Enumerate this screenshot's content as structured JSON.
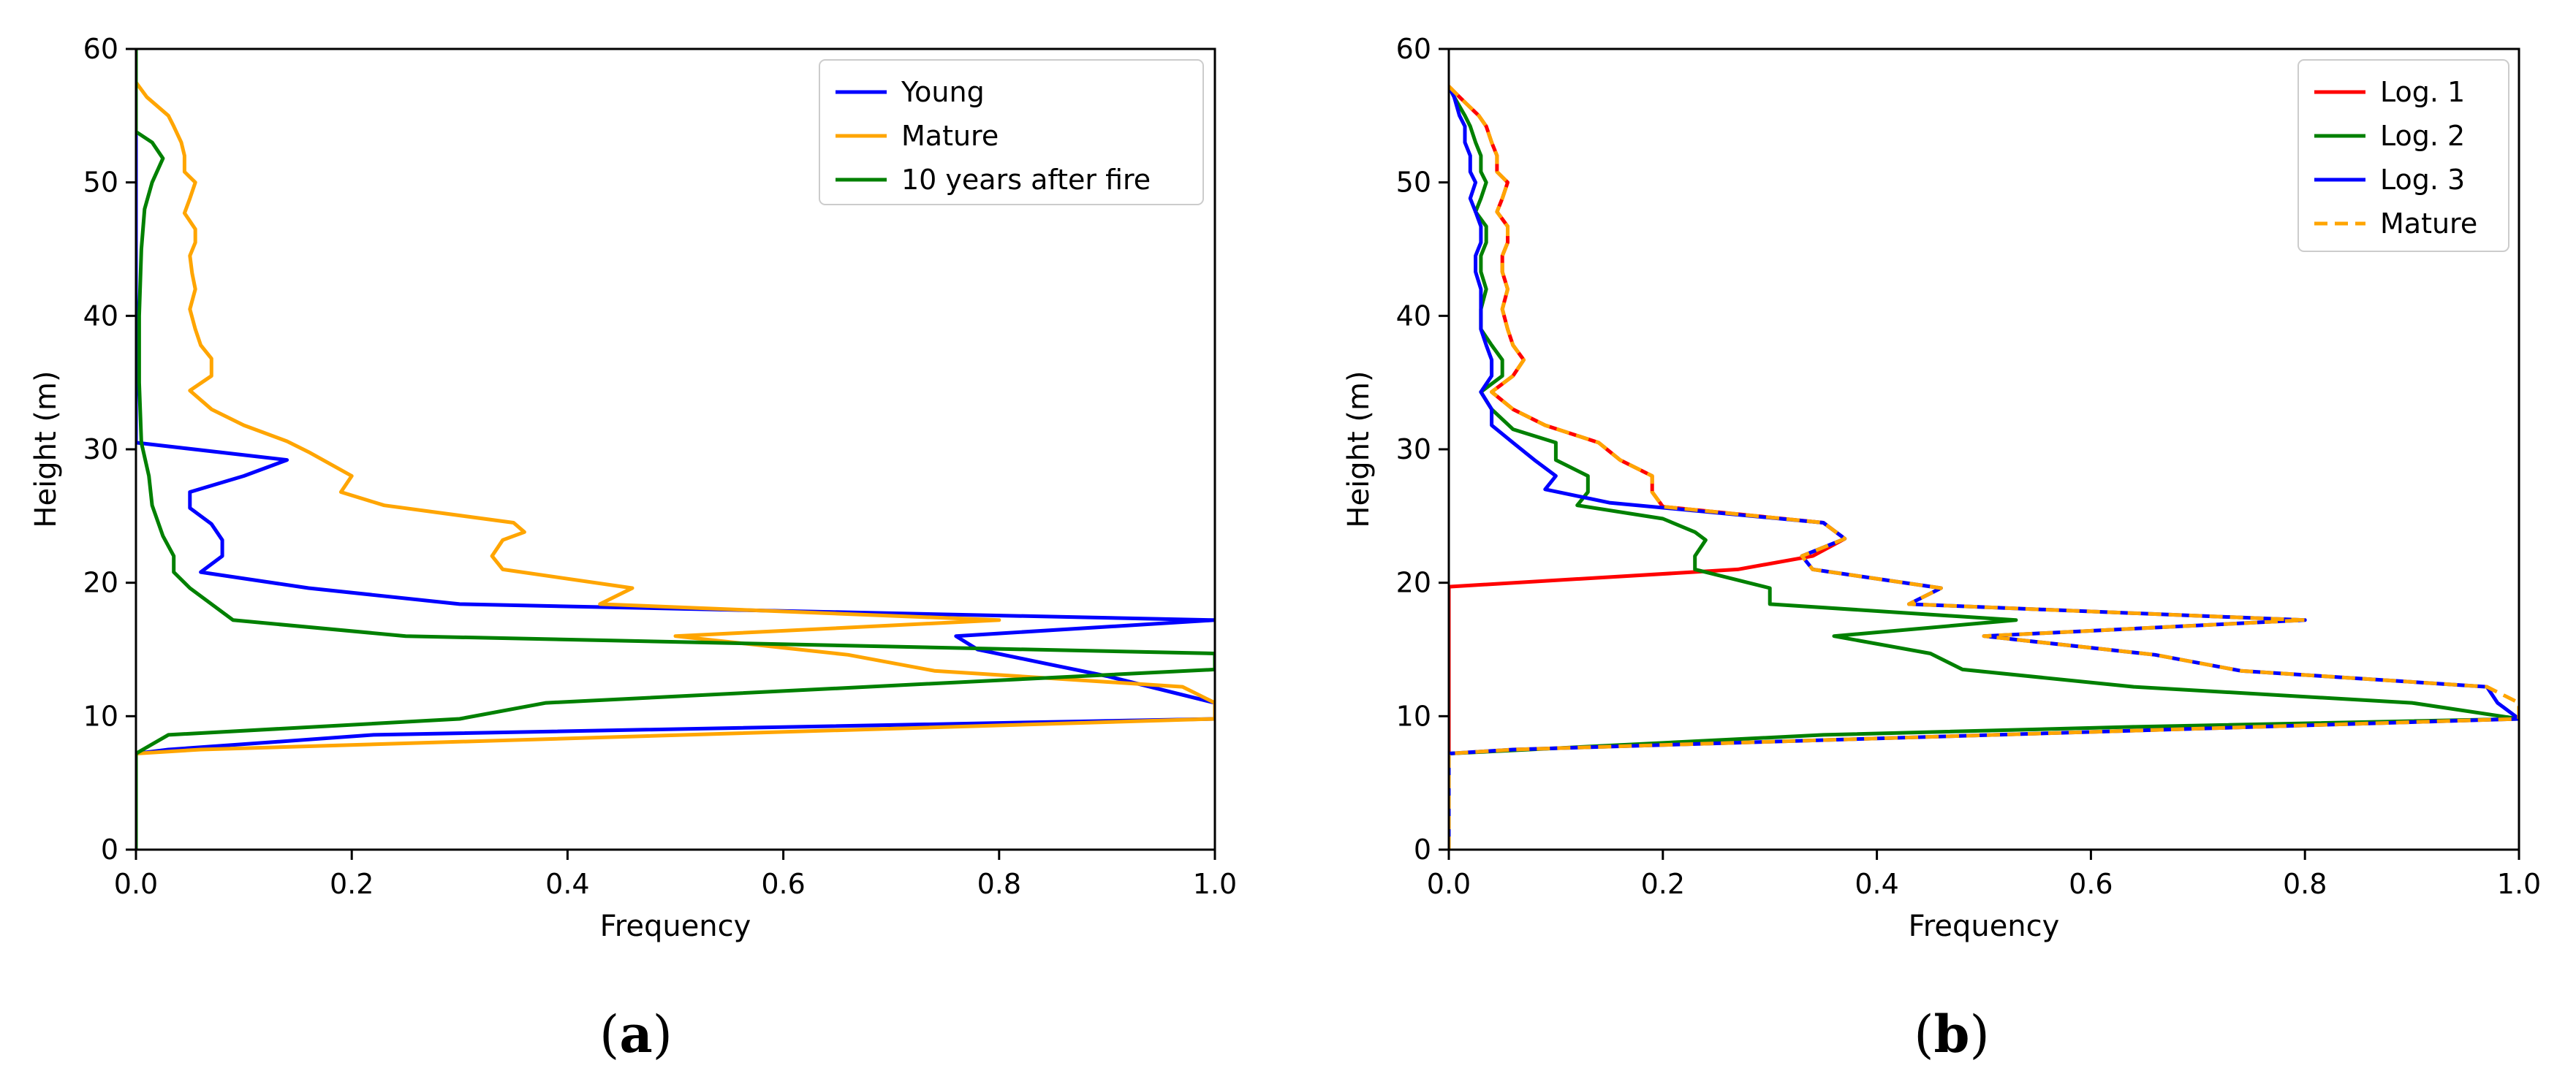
{
  "chart_data": [
    {
      "type": "line",
      "panel": "a",
      "panel_label_parts": [
        "(",
        "a",
        ")"
      ],
      "xlabel": "Frequency",
      "ylabel": "Height (m)",
      "xlim": [
        0,
        1
      ],
      "ylim": [
        0,
        60
      ],
      "xticks": [
        "0.0",
        "0.2",
        "0.4",
        "0.6",
        "0.8",
        "1.0"
      ],
      "yticks": [
        "0",
        "10",
        "20",
        "30",
        "40",
        "50",
        "60"
      ],
      "legend_location": "upper right",
      "series": [
        {
          "name": "Young",
          "color": "#0000ff",
          "style": "solid",
          "points": [
            [
              0,
              0
            ],
            [
              0,
              7.2
            ],
            [
              0.03,
              7.5
            ],
            [
              0.22,
              8.6
            ],
            [
              1.0,
              9.8
            ],
            [
              1.0,
              11
            ],
            [
              0.9,
              13
            ],
            [
              0.84,
              14
            ],
            [
              0.78,
              15
            ],
            [
              0.76,
              16
            ],
            [
              1.0,
              17.2
            ],
            [
              0.3,
              18.4
            ],
            [
              0.16,
              19.6
            ],
            [
              0.06,
              20.8
            ],
            [
              0.08,
              22
            ],
            [
              0.08,
              23.2
            ],
            [
              0.07,
              24.4
            ],
            [
              0.05,
              25.6
            ],
            [
              0.05,
              26.8
            ],
            [
              0.1,
              28
            ],
            [
              0.14,
              29.2
            ],
            [
              0.0,
              30.5
            ],
            [
              0,
              60
            ]
          ]
        },
        {
          "name": "Mature",
          "color": "#ffa500",
          "style": "solid",
          "points": [
            [
              0,
              0
            ],
            [
              0,
              7.2
            ],
            [
              0.06,
              7.5
            ],
            [
              1.0,
              9.8
            ],
            [
              1.0,
              11
            ],
            [
              0.97,
              12.2
            ],
            [
              0.74,
              13.4
            ],
            [
              0.66,
              14.6
            ],
            [
              0.5,
              16
            ],
            [
              0.8,
              17.2
            ],
            [
              0.43,
              18.4
            ],
            [
              0.46,
              19.6
            ],
            [
              0.34,
              21
            ],
            [
              0.33,
              22
            ],
            [
              0.34,
              23.2
            ],
            [
              0.36,
              23.8
            ],
            [
              0.35,
              24.5
            ],
            [
              0.23,
              25.8
            ],
            [
              0.19,
              26.8
            ],
            [
              0.2,
              28
            ],
            [
              0.16,
              29.8
            ],
            [
              0.14,
              30.6
            ],
            [
              0.1,
              31.8
            ],
            [
              0.07,
              33
            ],
            [
              0.05,
              34.4
            ],
            [
              0.07,
              35.5
            ],
            [
              0.07,
              36.8
            ],
            [
              0.06,
              37.8
            ],
            [
              0.055,
              39
            ],
            [
              0.05,
              40.5
            ],
            [
              0.055,
              42
            ],
            [
              0.052,
              43.2
            ],
            [
              0.05,
              44.5
            ],
            [
              0.055,
              45.5
            ],
            [
              0.055,
              46.5
            ],
            [
              0.045,
              47.7
            ],
            [
              0.05,
              48.8
            ],
            [
              0.055,
              50
            ],
            [
              0.045,
              50.8
            ],
            [
              0.045,
              52
            ],
            [
              0.042,
              53
            ],
            [
              0.035,
              54.2
            ],
            [
              0.03,
              55
            ],
            [
              0.01,
              56.4
            ],
            [
              0,
              57.5
            ],
            [
              0,
              60
            ]
          ]
        },
        {
          "name": "10 years after fire",
          "color": "#008000",
          "style": "solid",
          "points": [
            [
              0,
              0
            ],
            [
              0,
              7.2
            ],
            [
              0.03,
              8.6
            ],
            [
              0.3,
              9.8
            ],
            [
              0.38,
              11
            ],
            [
              1.0,
              13.5
            ],
            [
              1.0,
              14.7
            ],
            [
              0.25,
              16
            ],
            [
              0.09,
              17.2
            ],
            [
              0.07,
              18.4
            ],
            [
              0.05,
              19.6
            ],
            [
              0.035,
              20.8
            ],
            [
              0.035,
              22
            ],
            [
              0.025,
              23.5
            ],
            [
              0.015,
              25.8
            ],
            [
              0.012,
              28
            ],
            [
              0.005,
              30.5
            ],
            [
              0.003,
              35
            ],
            [
              0.003,
              40
            ],
            [
              0.005,
              45
            ],
            [
              0.008,
              48
            ],
            [
              0.015,
              50
            ],
            [
              0.025,
              51.8
            ],
            [
              0.015,
              53
            ],
            [
              0,
              53.8
            ],
            [
              0,
              60
            ]
          ]
        }
      ]
    },
    {
      "type": "line",
      "panel": "b",
      "panel_label_parts": [
        "(",
        "b",
        ")"
      ],
      "xlabel": "Frequency",
      "ylabel": "Height (m)",
      "xlim": [
        0,
        1
      ],
      "ylim": [
        0,
        60
      ],
      "xticks": [
        "0.0",
        "0.2",
        "0.4",
        "0.6",
        "0.8",
        "1.0"
      ],
      "yticks": [
        "0",
        "10",
        "20",
        "30",
        "40",
        "50",
        "60"
      ],
      "legend_location": "upper right",
      "series": [
        {
          "name": "Log. 1",
          "color": "#ff0000",
          "style": "solid",
          "points": [
            [
              0,
              0
            ],
            [
              0,
              19.7
            ],
            [
              0.27,
              21
            ],
            [
              0.34,
              22
            ],
            [
              0.37,
              23.3
            ],
            [
              0.35,
              24.5
            ],
            [
              0.2,
              25.7
            ],
            [
              0.19,
              26.8
            ],
            [
              0.19,
              28
            ],
            [
              0.16,
              29.2
            ],
            [
              0.14,
              30.5
            ],
            [
              0.09,
              31.8
            ],
            [
              0.06,
              33
            ],
            [
              0.04,
              34.3
            ],
            [
              0.06,
              35.5
            ],
            [
              0.07,
              36.7
            ],
            [
              0.06,
              37.8
            ],
            [
              0.055,
              39
            ],
            [
              0.05,
              40.5
            ],
            [
              0.055,
              42
            ],
            [
              0.05,
              43.3
            ],
            [
              0.05,
              44.5
            ],
            [
              0.055,
              45.5
            ],
            [
              0.055,
              46.7
            ],
            [
              0.045,
              47.8
            ],
            [
              0.05,
              48.8
            ],
            [
              0.055,
              50
            ],
            [
              0.045,
              50.8
            ],
            [
              0.045,
              52
            ],
            [
              0.04,
              53
            ],
            [
              0.035,
              54.2
            ],
            [
              0.028,
              55
            ],
            [
              0.01,
              56.4
            ],
            [
              0,
              57.2
            ]
          ]
        },
        {
          "name": "Log. 2",
          "color": "#008000",
          "style": "solid",
          "points": [
            [
              0,
              0
            ],
            [
              0,
              7.2
            ],
            [
              0.35,
              8.6
            ],
            [
              0.64,
              9.2
            ],
            [
              1.0,
              9.8
            ],
            [
              0.9,
              11
            ],
            [
              0.64,
              12.2
            ],
            [
              0.48,
              13.5
            ],
            [
              0.45,
              14.7
            ],
            [
              0.36,
              16
            ],
            [
              0.53,
              17.2
            ],
            [
              0.3,
              18.4
            ],
            [
              0.3,
              19.6
            ],
            [
              0.23,
              21
            ],
            [
              0.23,
              22
            ],
            [
              0.24,
              23.2
            ],
            [
              0.23,
              23.8
            ],
            [
              0.2,
              24.8
            ],
            [
              0.12,
              25.8
            ],
            [
              0.13,
              26.8
            ],
            [
              0.13,
              28
            ],
            [
              0.1,
              29.2
            ],
            [
              0.1,
              30.5
            ],
            [
              0.06,
              31.5
            ],
            [
              0.04,
              33
            ],
            [
              0.03,
              34.3
            ],
            [
              0.05,
              35.5
            ],
            [
              0.05,
              36.7
            ],
            [
              0.04,
              37.8
            ],
            [
              0.03,
              39
            ],
            [
              0.03,
              40.5
            ],
            [
              0.035,
              42
            ],
            [
              0.03,
              43.3
            ],
            [
              0.03,
              44.5
            ],
            [
              0.035,
              45.5
            ],
            [
              0.035,
              46.7
            ],
            [
              0.025,
              47.8
            ],
            [
              0.03,
              48.8
            ],
            [
              0.035,
              50
            ],
            [
              0.03,
              50.8
            ],
            [
              0.03,
              52
            ],
            [
              0.025,
              53
            ],
            [
              0.02,
              54.2
            ],
            [
              0.015,
              55
            ],
            [
              0.005,
              56.4
            ],
            [
              0,
              57.2
            ]
          ]
        },
        {
          "name": "Log. 3",
          "color": "#0000ff",
          "style": "solid",
          "points": [
            [
              0,
              0
            ],
            [
              0,
              7.2
            ],
            [
              0.06,
              7.5
            ],
            [
              1.0,
              9.8
            ],
            [
              0.98,
              11
            ],
            [
              0.97,
              12.2
            ],
            [
              0.74,
              13.4
            ],
            [
              0.66,
              14.6
            ],
            [
              0.5,
              16
            ],
            [
              0.8,
              17.2
            ],
            [
              0.43,
              18.4
            ],
            [
              0.46,
              19.6
            ],
            [
              0.34,
              21
            ],
            [
              0.33,
              22
            ],
            [
              0.37,
              23.3
            ],
            [
              0.35,
              24.5
            ],
            [
              0.15,
              26
            ],
            [
              0.09,
              27
            ],
            [
              0.1,
              28
            ],
            [
              0.08,
              29.2
            ],
            [
              0.06,
              30.5
            ],
            [
              0.04,
              31.8
            ],
            [
              0.04,
              33
            ],
            [
              0.03,
              34.3
            ],
            [
              0.04,
              35.5
            ],
            [
              0.04,
              36.7
            ],
            [
              0.035,
              37.8
            ],
            [
              0.03,
              39
            ],
            [
              0.03,
              40.5
            ],
            [
              0.03,
              42
            ],
            [
              0.025,
              43.3
            ],
            [
              0.025,
              44.5
            ],
            [
              0.03,
              45.5
            ],
            [
              0.03,
              46.7
            ],
            [
              0.025,
              47.8
            ],
            [
              0.02,
              48.8
            ],
            [
              0.025,
              50
            ],
            [
              0.02,
              50.8
            ],
            [
              0.02,
              52
            ],
            [
              0.015,
              53
            ],
            [
              0.015,
              54.2
            ],
            [
              0.01,
              55
            ],
            [
              0.005,
              56.4
            ],
            [
              0,
              57.2
            ]
          ]
        },
        {
          "name": "Mature",
          "color": "#ffa500",
          "style": "dashed",
          "points": [
            [
              0,
              0
            ],
            [
              0,
              7.2
            ],
            [
              0.06,
              7.5
            ],
            [
              1.0,
              9.8
            ],
            [
              1.0,
              11
            ],
            [
              0.97,
              12.2
            ],
            [
              0.74,
              13.4
            ],
            [
              0.66,
              14.6
            ],
            [
              0.5,
              16
            ],
            [
              0.8,
              17.2
            ],
            [
              0.43,
              18.4
            ],
            [
              0.46,
              19.6
            ],
            [
              0.34,
              21
            ],
            [
              0.33,
              22
            ],
            [
              0.37,
              23.3
            ],
            [
              0.35,
              24.5
            ],
            [
              0.2,
              25.7
            ],
            [
              0.19,
              26.8
            ],
            [
              0.19,
              28
            ],
            [
              0.16,
              29.2
            ],
            [
              0.14,
              30.5
            ],
            [
              0.09,
              31.8
            ],
            [
              0.06,
              33
            ],
            [
              0.04,
              34.3
            ],
            [
              0.06,
              35.5
            ],
            [
              0.07,
              36.7
            ],
            [
              0.06,
              37.8
            ],
            [
              0.055,
              39
            ],
            [
              0.05,
              40.5
            ],
            [
              0.055,
              42
            ],
            [
              0.05,
              43.3
            ],
            [
              0.05,
              44.5
            ],
            [
              0.055,
              45.5
            ],
            [
              0.055,
              46.7
            ],
            [
              0.045,
              47.8
            ],
            [
              0.05,
              48.8
            ],
            [
              0.055,
              50
            ],
            [
              0.045,
              50.8
            ],
            [
              0.045,
              52
            ],
            [
              0.04,
              53
            ],
            [
              0.035,
              54.2
            ],
            [
              0.028,
              55
            ],
            [
              0.01,
              56.4
            ],
            [
              0,
              57.2
            ]
          ]
        }
      ]
    }
  ]
}
